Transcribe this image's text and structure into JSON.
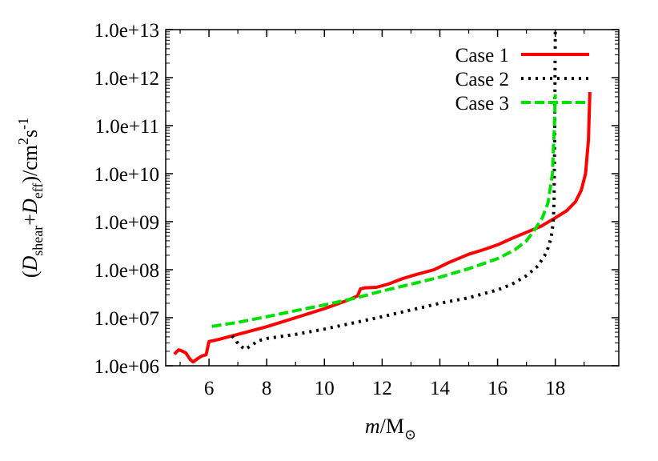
{
  "chart_data": {
    "type": "line",
    "xlabel_parts": {
      "m": "m",
      "slash": "/",
      "M": "M",
      "sun": "⊙"
    },
    "ylabel_parts": {
      "open": "(",
      "D1": "D",
      "sub1": "shear",
      "plus": "+",
      "D2": "D",
      "sub2": "eff",
      "close_unit": ")/cm",
      "sup2": "2",
      "s": "s",
      "supm1": "-1"
    },
    "x_ticks": [
      "6",
      "8",
      "10",
      "12",
      "14",
      "16",
      "18"
    ],
    "y_ticks": [
      "1.0e+06",
      "1.0e+07",
      "1.0e+08",
      "1.0e+09",
      "1.0e+10",
      "1.0e+11",
      "1.0e+12",
      "1.0e+13"
    ],
    "xlim": [
      4.5,
      20.2
    ],
    "ylim_log10": [
      6,
      13
    ],
    "y_scale": "log",
    "grid": false,
    "legend_position": "top-right",
    "series": [
      {
        "name": "Case 1",
        "color": "#ff0000",
        "dash": "solid",
        "points": [
          [
            4.8,
            1750000.0
          ],
          [
            4.95,
            2150000.0
          ],
          [
            5.05,
            2050000.0
          ],
          [
            5.2,
            1850000.0
          ],
          [
            5.35,
            1350000.0
          ],
          [
            5.45,
            1200000.0
          ],
          [
            5.6,
            1400000.0
          ],
          [
            5.75,
            1600000.0
          ],
          [
            5.9,
            1700000.0
          ],
          [
            6.0,
            3200000.0
          ],
          [
            6.3,
            3500000.0
          ],
          [
            7.0,
            4500000.0
          ],
          [
            8.0,
            6500000.0
          ],
          [
            9.0,
            10000000.0
          ],
          [
            10.0,
            15500000.0
          ],
          [
            10.8,
            23000000.0
          ],
          [
            11.15,
            28500000.0
          ],
          [
            11.25,
            40000000.0
          ],
          [
            11.4,
            42000000.0
          ],
          [
            11.8,
            43000000.0
          ],
          [
            12.2,
            50000000.0
          ],
          [
            12.7,
            65000000.0
          ],
          [
            13.2,
            80000000.0
          ],
          [
            13.8,
            100000000.0
          ],
          [
            14.3,
            140000000.0
          ],
          [
            15.0,
            210000000.0
          ],
          [
            15.5,
            260000000.0
          ],
          [
            16.0,
            330000000.0
          ],
          [
            16.5,
            450000000.0
          ],
          [
            17.0,
            600000000.0
          ],
          [
            17.5,
            800000000.0
          ],
          [
            18.0,
            1200000000.0
          ],
          [
            18.4,
            1700000000.0
          ],
          [
            18.7,
            2600000000.0
          ],
          [
            18.9,
            4500000000.0
          ],
          [
            19.05,
            10000000000.0
          ],
          [
            19.15,
            50000000000.0
          ],
          [
            19.2,
            500000000000.0
          ]
        ]
      },
      {
        "name": "Case 2",
        "color": "#000000",
        "dash": "dotted",
        "points": [
          [
            6.8,
            4200000.0
          ],
          [
            7.05,
            2700000.0
          ],
          [
            7.25,
            2200000.0
          ],
          [
            7.45,
            2600000.0
          ],
          [
            7.7,
            3300000.0
          ],
          [
            8.0,
            3700000.0
          ],
          [
            9.0,
            4500000.0
          ],
          [
            10.0,
            5800000.0
          ],
          [
            11.0,
            7800000.0
          ],
          [
            12.0,
            10500000.0
          ],
          [
            13.0,
            14500000.0
          ],
          [
            14.0,
            20000000.0
          ],
          [
            15.0,
            26000000.0
          ],
          [
            16.0,
            38000000.0
          ],
          [
            16.5,
            50000000.0
          ],
          [
            17.0,
            75000000.0
          ],
          [
            17.4,
            120000000.0
          ],
          [
            17.7,
            230000000.0
          ],
          [
            17.85,
            450000000.0
          ],
          [
            17.93,
            1000000000.0
          ],
          [
            17.96,
            3000000000.0
          ],
          [
            17.98,
            100000000000.0
          ],
          [
            18.0,
            10000000000000.0
          ]
        ]
      },
      {
        "name": "Case 3",
        "color": "#00e000",
        "dash": "dashed",
        "points": [
          [
            6.1,
            6600000.0
          ],
          [
            7.0,
            8000000.0
          ],
          [
            8.0,
            10500000.0
          ],
          [
            9.0,
            14000000.0
          ],
          [
            10.0,
            18500000.0
          ],
          [
            11.0,
            25000000.0
          ],
          [
            12.0,
            36000000.0
          ],
          [
            13.0,
            50000000.0
          ],
          [
            14.0,
            70000000.0
          ],
          [
            15.0,
            105000000.0
          ],
          [
            16.0,
            170000000.0
          ],
          [
            16.6,
            260000000.0
          ],
          [
            17.0,
            400000000.0
          ],
          [
            17.3,
            700000000.0
          ],
          [
            17.55,
            1200000000.0
          ],
          [
            17.75,
            2500000000.0
          ],
          [
            17.9,
            10000000000.0
          ],
          [
            17.97,
            100000000000.0
          ],
          [
            18.0,
            450000000000.0
          ]
        ]
      }
    ]
  }
}
